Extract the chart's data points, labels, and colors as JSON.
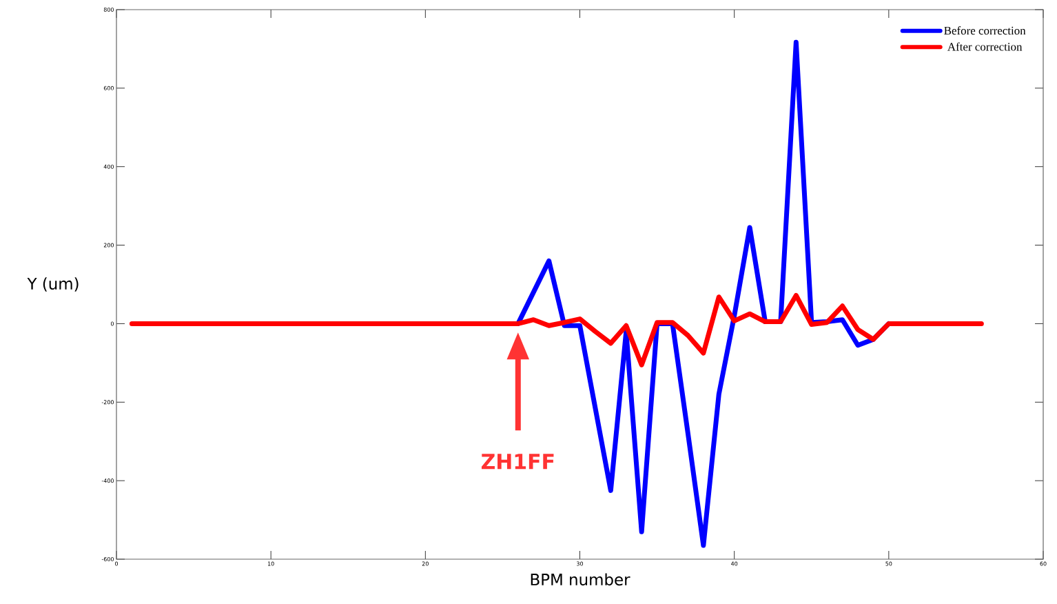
{
  "chart_data": {
    "type": "line",
    "xlabel": "BPM number",
    "ylabel": "Y (um)",
    "x": [
      1,
      2,
      3,
      4,
      5,
      6,
      7,
      8,
      9,
      10,
      11,
      12,
      13,
      14,
      15,
      16,
      17,
      18,
      19,
      20,
      21,
      22,
      23,
      24,
      25,
      26,
      27,
      28,
      29,
      30,
      31,
      32,
      33,
      34,
      35,
      36,
      37,
      38,
      39,
      40,
      41,
      42,
      43,
      44,
      45,
      46,
      47,
      48,
      49,
      50,
      51,
      52,
      53,
      54,
      55,
      56
    ],
    "series": [
      {
        "name": "Before correction",
        "color": "#0000ff",
        "values": [
          null,
          null,
          null,
          null,
          null,
          null,
          null,
          null,
          null,
          null,
          null,
          null,
          null,
          null,
          null,
          null,
          null,
          null,
          null,
          null,
          null,
          null,
          null,
          null,
          null,
          0,
          80,
          160,
          -5,
          -5,
          -215,
          -425,
          -20,
          -530,
          0,
          0,
          -280,
          -565,
          -180,
          20,
          245,
          5,
          5,
          717,
          3,
          5,
          10,
          -55,
          -40,
          0,
          null,
          null,
          null,
          null,
          null,
          null
        ]
      },
      {
        "name": "After correction",
        "color": "#ff0000",
        "values": [
          0,
          0,
          0,
          0,
          0,
          0,
          0,
          0,
          0,
          0,
          0,
          0,
          0,
          0,
          0,
          0,
          0,
          0,
          0,
          0,
          0,
          0,
          0,
          0,
          0,
          0,
          10,
          -5,
          3,
          12,
          -20,
          -50,
          -5,
          -105,
          3,
          3,
          -30,
          -75,
          68,
          7,
          25,
          5,
          5,
          72,
          -2,
          3,
          45,
          -15,
          -40,
          0,
          0,
          0,
          0,
          0,
          0,
          0
        ]
      }
    ],
    "xlim": [
      0,
      60
    ],
    "ylim": [
      -600,
      800
    ],
    "xticks": [
      0,
      10,
      20,
      30,
      40,
      50,
      60
    ],
    "yticks": [
      -600,
      -400,
      -200,
      0,
      200,
      400,
      600,
      800
    ],
    "grid": false,
    "legend": "top right",
    "marker": "none",
    "line_style": "solid",
    "annotations": [
      "ZH1FF"
    ]
  }
}
